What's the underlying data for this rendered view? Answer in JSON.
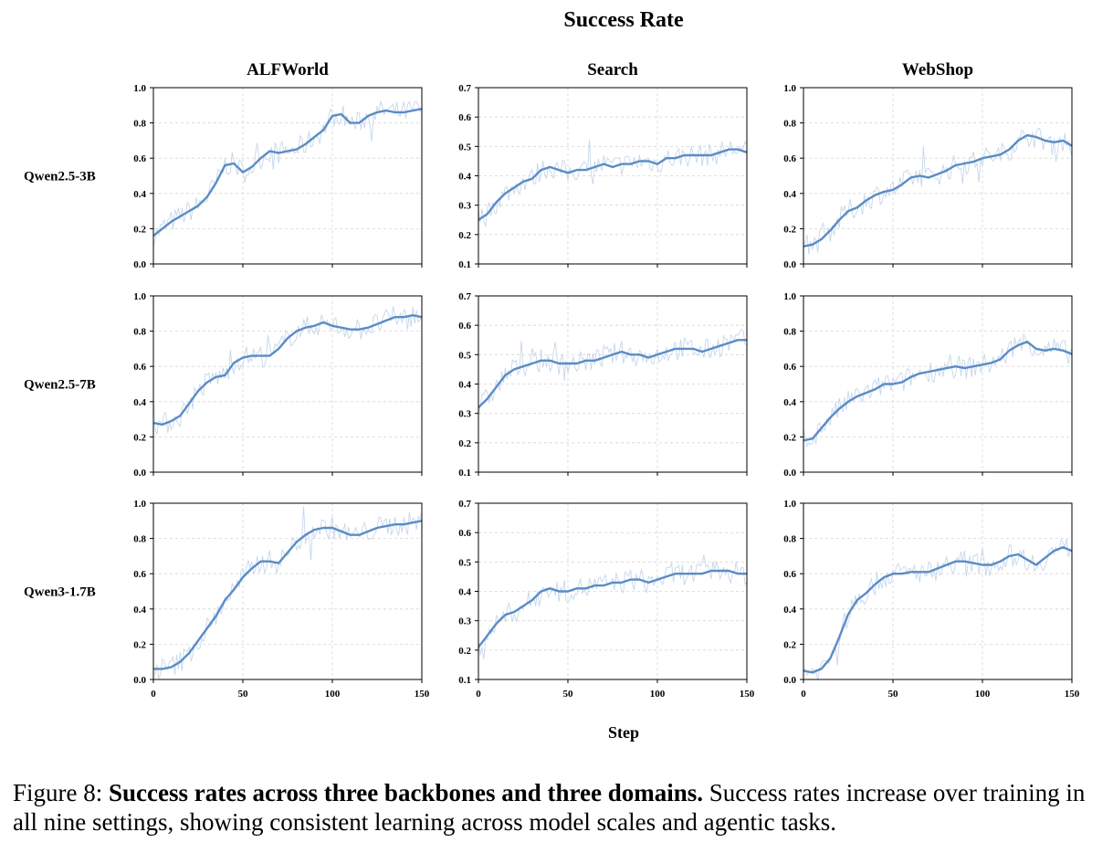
{
  "chart_data": {
    "type": "line",
    "title": "Success Rate",
    "xlabel": "Step",
    "xlim": [
      0,
      150
    ],
    "xticks": [
      "0",
      "50",
      "100",
      "150"
    ],
    "columns": [
      "ALFWorld",
      "Search",
      "WebShop"
    ],
    "rows": [
      "Qwen2.5-3B",
      "Qwen2.5-7B",
      "Qwen3-1.7B"
    ],
    "grid": true,
    "colors": {
      "smoothed": "#5b8cc4",
      "raw": "#c5d7ec"
    },
    "subplots": [
      {
        "row": "Qwen2.5-3B",
        "column": "ALFWorld",
        "ylim": [
          0,
          1
        ],
        "yticks": [
          "0.0",
          "0.2",
          "0.4",
          "0.6",
          "0.8",
          "1.0"
        ],
        "x": [
          0,
          5,
          10,
          15,
          20,
          25,
          30,
          35,
          40,
          45,
          50,
          55,
          60,
          65,
          70,
          75,
          80,
          85,
          90,
          95,
          100,
          105,
          110,
          115,
          120,
          125,
          130,
          135,
          140,
          145,
          150
        ],
        "y": [
          0.16,
          0.2,
          0.24,
          0.27,
          0.3,
          0.33,
          0.38,
          0.46,
          0.56,
          0.57,
          0.52,
          0.55,
          0.6,
          0.64,
          0.63,
          0.64,
          0.65,
          0.68,
          0.72,
          0.76,
          0.84,
          0.85,
          0.8,
          0.8,
          0.84,
          0.86,
          0.87,
          0.86,
          0.86,
          0.87,
          0.88
        ]
      },
      {
        "row": "Qwen2.5-3B",
        "column": "Search",
        "ylim": [
          0.1,
          0.7
        ],
        "yticks": [
          "0.1",
          "0.2",
          "0.3",
          "0.4",
          "0.5",
          "0.6",
          "0.7"
        ],
        "x": [
          0,
          5,
          10,
          15,
          20,
          25,
          30,
          35,
          40,
          45,
          50,
          55,
          60,
          65,
          70,
          75,
          80,
          85,
          90,
          95,
          100,
          105,
          110,
          115,
          120,
          125,
          130,
          135,
          140,
          145,
          150
        ],
        "y": [
          0.25,
          0.27,
          0.31,
          0.34,
          0.36,
          0.38,
          0.39,
          0.42,
          0.43,
          0.42,
          0.41,
          0.42,
          0.42,
          0.43,
          0.44,
          0.43,
          0.44,
          0.44,
          0.45,
          0.45,
          0.44,
          0.46,
          0.46,
          0.47,
          0.47,
          0.47,
          0.47,
          0.48,
          0.49,
          0.49,
          0.48
        ]
      },
      {
        "row": "Qwen2.5-3B",
        "column": "WebShop",
        "ylim": [
          0,
          1
        ],
        "yticks": [
          "0.0",
          "0.2",
          "0.4",
          "0.6",
          "0.8",
          "1.0"
        ],
        "x": [
          0,
          5,
          10,
          15,
          20,
          25,
          30,
          35,
          40,
          45,
          50,
          55,
          60,
          65,
          70,
          75,
          80,
          85,
          90,
          95,
          100,
          105,
          110,
          115,
          120,
          125,
          130,
          135,
          140,
          145,
          150
        ],
        "y": [
          0.1,
          0.11,
          0.14,
          0.19,
          0.25,
          0.3,
          0.32,
          0.36,
          0.39,
          0.41,
          0.42,
          0.45,
          0.49,
          0.5,
          0.49,
          0.51,
          0.53,
          0.56,
          0.57,
          0.58,
          0.6,
          0.61,
          0.62,
          0.65,
          0.7,
          0.73,
          0.72,
          0.7,
          0.69,
          0.7,
          0.67
        ]
      },
      {
        "row": "Qwen2.5-7B",
        "column": "ALFWorld",
        "ylim": [
          0,
          1
        ],
        "yticks": [
          "0.0",
          "0.2",
          "0.4",
          "0.6",
          "0.8",
          "1.0"
        ],
        "x": [
          0,
          5,
          10,
          15,
          20,
          25,
          30,
          35,
          40,
          45,
          50,
          55,
          60,
          65,
          70,
          75,
          80,
          85,
          90,
          95,
          100,
          105,
          110,
          115,
          120,
          125,
          130,
          135,
          140,
          145,
          150
        ],
        "y": [
          0.28,
          0.27,
          0.29,
          0.32,
          0.39,
          0.46,
          0.51,
          0.54,
          0.55,
          0.62,
          0.65,
          0.66,
          0.66,
          0.66,
          0.7,
          0.76,
          0.8,
          0.82,
          0.83,
          0.85,
          0.83,
          0.82,
          0.81,
          0.81,
          0.82,
          0.84,
          0.86,
          0.88,
          0.88,
          0.89,
          0.88
        ]
      },
      {
        "row": "Qwen2.5-7B",
        "column": "Search",
        "ylim": [
          0.1,
          0.7
        ],
        "yticks": [
          "0.1",
          "0.2",
          "0.3",
          "0.4",
          "0.5",
          "0.6",
          "0.7"
        ],
        "x": [
          0,
          5,
          10,
          15,
          20,
          25,
          30,
          35,
          40,
          45,
          50,
          55,
          60,
          65,
          70,
          75,
          80,
          85,
          90,
          95,
          100,
          105,
          110,
          115,
          120,
          125,
          130,
          135,
          140,
          145,
          150
        ],
        "y": [
          0.32,
          0.35,
          0.39,
          0.43,
          0.45,
          0.46,
          0.47,
          0.48,
          0.48,
          0.47,
          0.47,
          0.47,
          0.48,
          0.48,
          0.49,
          0.5,
          0.51,
          0.5,
          0.5,
          0.49,
          0.5,
          0.51,
          0.52,
          0.52,
          0.52,
          0.51,
          0.52,
          0.53,
          0.54,
          0.55,
          0.55
        ]
      },
      {
        "row": "Qwen2.5-7B",
        "column": "WebShop",
        "ylim": [
          0,
          1
        ],
        "yticks": [
          "0.0",
          "0.2",
          "0.4",
          "0.6",
          "0.8",
          "1.0"
        ],
        "x": [
          0,
          5,
          10,
          15,
          20,
          25,
          30,
          35,
          40,
          45,
          50,
          55,
          60,
          65,
          70,
          75,
          80,
          85,
          90,
          95,
          100,
          105,
          110,
          115,
          120,
          125,
          130,
          135,
          140,
          145,
          150
        ],
        "y": [
          0.18,
          0.19,
          0.25,
          0.31,
          0.36,
          0.4,
          0.43,
          0.45,
          0.47,
          0.5,
          0.5,
          0.51,
          0.54,
          0.56,
          0.57,
          0.58,
          0.59,
          0.6,
          0.59,
          0.6,
          0.61,
          0.62,
          0.64,
          0.69,
          0.72,
          0.74,
          0.7,
          0.69,
          0.7,
          0.69,
          0.67
        ]
      },
      {
        "row": "Qwen3-1.7B",
        "column": "ALFWorld",
        "ylim": [
          0,
          1
        ],
        "yticks": [
          "0.0",
          "0.2",
          "0.4",
          "0.6",
          "0.8",
          "1.0"
        ],
        "x": [
          0,
          5,
          10,
          15,
          20,
          25,
          30,
          35,
          40,
          45,
          50,
          55,
          60,
          65,
          70,
          75,
          80,
          85,
          90,
          95,
          100,
          105,
          110,
          115,
          120,
          125,
          130,
          135,
          140,
          145,
          150
        ],
        "y": [
          0.06,
          0.06,
          0.07,
          0.1,
          0.15,
          0.22,
          0.29,
          0.36,
          0.45,
          0.51,
          0.58,
          0.63,
          0.67,
          0.67,
          0.66,
          0.72,
          0.78,
          0.82,
          0.85,
          0.86,
          0.86,
          0.84,
          0.82,
          0.82,
          0.84,
          0.86,
          0.87,
          0.88,
          0.88,
          0.89,
          0.9
        ]
      },
      {
        "row": "Qwen3-1.7B",
        "column": "Search",
        "ylim": [
          0.1,
          0.7
        ],
        "yticks": [
          "0.1",
          "0.2",
          "0.3",
          "0.4",
          "0.5",
          "0.6",
          "0.7"
        ],
        "x": [
          0,
          5,
          10,
          15,
          20,
          25,
          30,
          35,
          40,
          45,
          50,
          55,
          60,
          65,
          70,
          75,
          80,
          85,
          90,
          95,
          100,
          105,
          110,
          115,
          120,
          125,
          130,
          135,
          140,
          145,
          150
        ],
        "y": [
          0.21,
          0.25,
          0.29,
          0.32,
          0.33,
          0.35,
          0.37,
          0.4,
          0.41,
          0.4,
          0.4,
          0.41,
          0.41,
          0.42,
          0.42,
          0.43,
          0.43,
          0.44,
          0.44,
          0.43,
          0.44,
          0.45,
          0.46,
          0.46,
          0.46,
          0.46,
          0.47,
          0.47,
          0.47,
          0.46,
          0.46
        ]
      },
      {
        "row": "Qwen3-1.7B",
        "column": "WebShop",
        "ylim": [
          0,
          1
        ],
        "yticks": [
          "0.0",
          "0.2",
          "0.4",
          "0.6",
          "0.8",
          "1.0"
        ],
        "x": [
          0,
          5,
          10,
          15,
          20,
          25,
          30,
          35,
          40,
          45,
          50,
          55,
          60,
          65,
          70,
          75,
          80,
          85,
          90,
          95,
          100,
          105,
          110,
          115,
          120,
          125,
          130,
          135,
          140,
          145,
          150
        ],
        "y": [
          0.05,
          0.04,
          0.06,
          0.12,
          0.24,
          0.37,
          0.45,
          0.49,
          0.54,
          0.58,
          0.6,
          0.6,
          0.61,
          0.61,
          0.61,
          0.63,
          0.65,
          0.67,
          0.67,
          0.66,
          0.65,
          0.65,
          0.67,
          0.7,
          0.71,
          0.68,
          0.65,
          0.69,
          0.73,
          0.75,
          0.73
        ]
      }
    ]
  },
  "caption": {
    "label": "Figure 8:",
    "bold": "Success rates across three backbones and three domains.",
    "text": "Success rates increase over training in all nine settings, showing consistent learning across model scales and agentic tasks."
  }
}
